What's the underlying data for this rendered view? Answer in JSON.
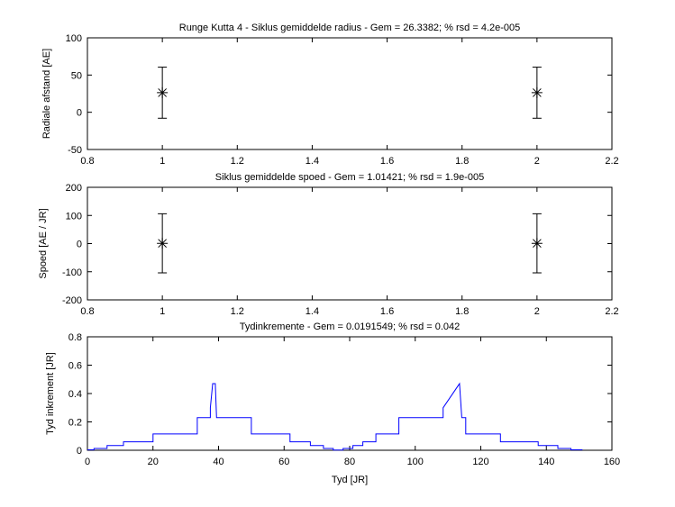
{
  "chart_data": [
    {
      "type": "scatter",
      "title": "Runge Kutta 4 - Siklus gemiddelde radius - Gem = 26.3382; % rsd = 4.2e-005",
      "xlabel": "",
      "ylabel": "Radiale afstand [AE]",
      "xlim": [
        0.8,
        2.2
      ],
      "ylim": [
        -50,
        100
      ],
      "xticks": [
        "0.8",
        "1",
        "1.2",
        "1.4",
        "1.6",
        "1.8",
        "2",
        "2.2"
      ],
      "xtick_values": [
        0.8,
        1.0,
        1.2,
        1.4,
        1.6,
        1.8,
        2.0,
        2.2
      ],
      "yticks": [
        "-50",
        "0",
        "50",
        "100"
      ],
      "ytick_values": [
        -50,
        0,
        50,
        100
      ],
      "marker": "asterisk",
      "error_bars": true,
      "series": [
        {
          "x": [
            1,
            2
          ],
          "y": [
            26.3,
            26.3
          ],
          "err": [
            34.3,
            34.3
          ],
          "color": "#000000"
        }
      ]
    },
    {
      "type": "scatter",
      "title": "Siklus gemiddelde spoed - Gem = 1.01421; % rsd = 1.9e-005",
      "xlabel": "",
      "ylabel": "Spoed [AE / JR]",
      "xlim": [
        0.8,
        2.2
      ],
      "ylim": [
        -200,
        200
      ],
      "xticks": [
        "0.8",
        "1",
        "1.2",
        "1.4",
        "1.6",
        "1.8",
        "2",
        "2.2"
      ],
      "xtick_values": [
        0.8,
        1.0,
        1.2,
        1.4,
        1.6,
        1.8,
        2.0,
        2.2
      ],
      "yticks": [
        "-200",
        "-100",
        "0",
        "100",
        "200"
      ],
      "ytick_values": [
        -200,
        -100,
        0,
        100,
        200
      ],
      "marker": "asterisk",
      "error_bars": true,
      "series": [
        {
          "x": [
            1,
            2
          ],
          "y": [
            1.0,
            1.0
          ],
          "err": [
            105,
            105
          ],
          "color": "#000000"
        }
      ]
    },
    {
      "type": "line",
      "step": true,
      "title": "Tydinkremente - Gem = 0.0191549; % rsd = 0.042",
      "xlabel": "Tyd [JR]",
      "ylabel": "Tyd inkrement [JR]",
      "xlim": [
        0,
        160
      ],
      "ylim": [
        0,
        0.8
      ],
      "xticks": [
        "0",
        "20",
        "40",
        "60",
        "80",
        "100",
        "120",
        "140",
        "160"
      ],
      "xtick_values": [
        0,
        20,
        40,
        60,
        80,
        100,
        120,
        140,
        160
      ],
      "yticks": [
        "0",
        "0.2",
        "0.4",
        "0.6",
        "0.8"
      ],
      "ytick_values": [
        0,
        0.2,
        0.4,
        0.6,
        0.8
      ],
      "series": [
        {
          "color": "#0000ff",
          "x": [
            0,
            2,
            2,
            6,
            6,
            11,
            11,
            20,
            20,
            33.5,
            33.5,
            37.5,
            37.5,
            38.2,
            39.0,
            39.4,
            39.4,
            50,
            50,
            61.8,
            61.8,
            68,
            68,
            72,
            72,
            75,
            75,
            78,
            78,
            81,
            81,
            84,
            84,
            88,
            88,
            95,
            95,
            108.5,
            108.5,
            113.5,
            113.5,
            114.2,
            115.0,
            115.4,
            115.4,
            126,
            126,
            137.5,
            137.5,
            143.5,
            143.5,
            147.5,
            147.5,
            151
          ],
          "y": [
            0.003,
            0.003,
            0.013,
            0.013,
            0.033,
            0.033,
            0.06,
            0.06,
            0.115,
            0.115,
            0.23,
            0.23,
            0.3,
            0.47,
            0.47,
            0.23,
            0.23,
            0.23,
            0.115,
            0.115,
            0.06,
            0.06,
            0.033,
            0.033,
            0.013,
            0.013,
            0.002,
            0.002,
            0.013,
            0.013,
            0.033,
            0.033,
            0.06,
            0.06,
            0.115,
            0.115,
            0.23,
            0.23,
            0.3,
            0.47,
            0.47,
            0.23,
            0.23,
            0.23,
            0.115,
            0.115,
            0.06,
            0.06,
            0.033,
            0.033,
            0.013,
            0.013,
            0.003,
            0.003
          ]
        }
      ]
    }
  ]
}
